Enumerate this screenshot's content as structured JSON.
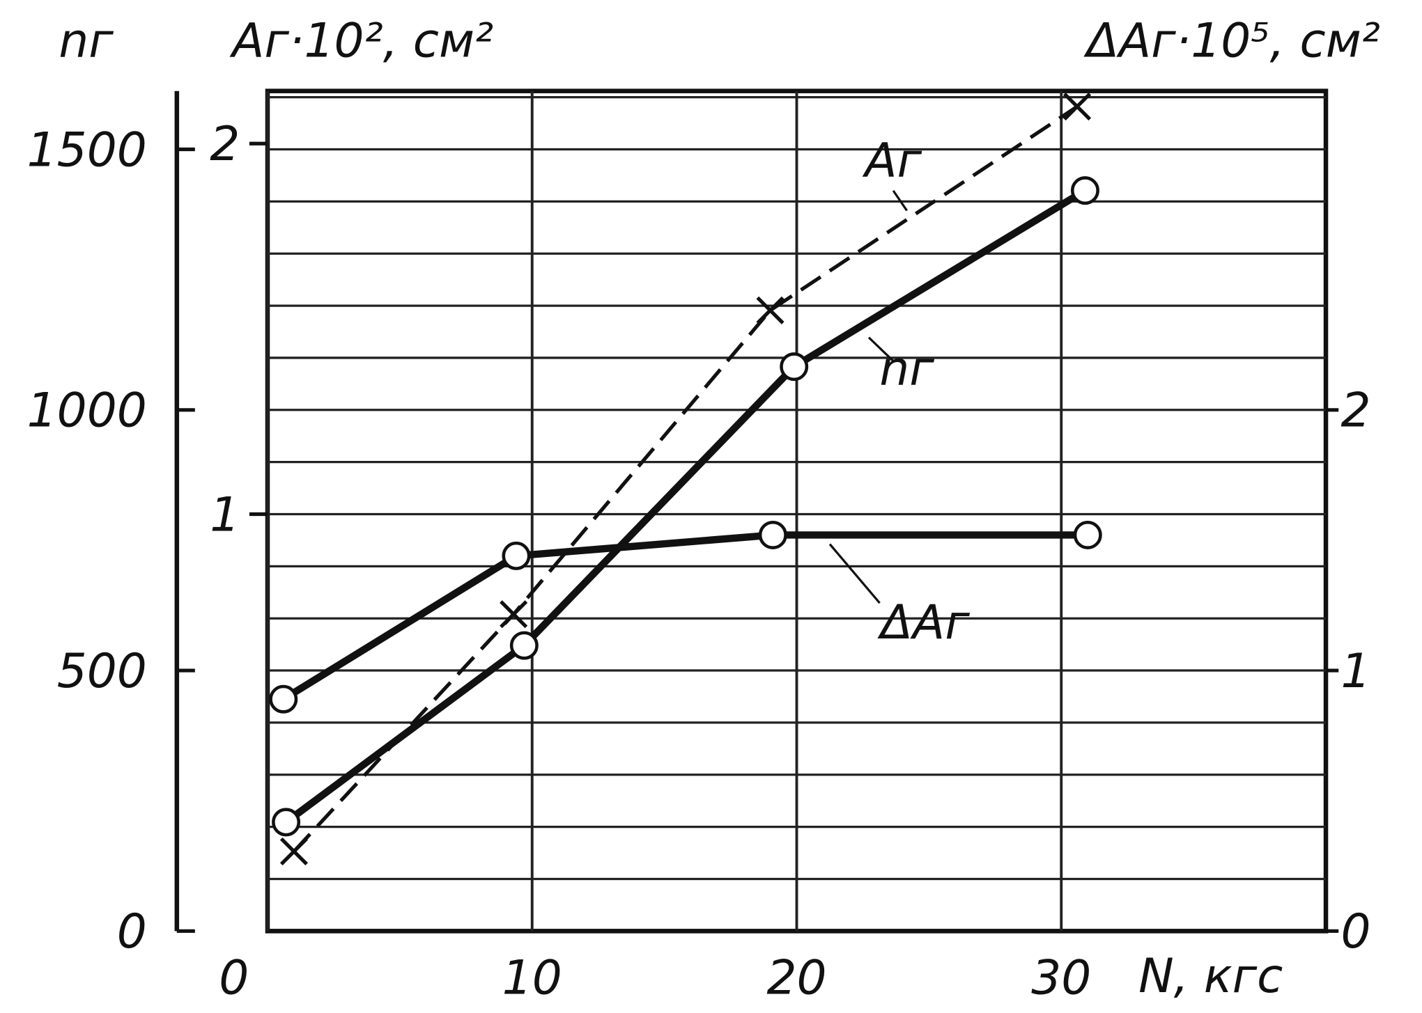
{
  "chart_data": {
    "type": "line",
    "axis_titles": {
      "y": "nг",
      "y2": "Aг·10², см²",
      "y3": "ΔAг·10⁵, см²",
      "x": "N, кгс"
    },
    "xlim": [
      0,
      40
    ],
    "xticks": [
      0,
      10,
      20,
      30
    ],
    "ylim": [
      0,
      1612
    ],
    "yticks": [
      0,
      500,
      1000,
      1500
    ],
    "ygrid": [
      100,
      200,
      300,
      400,
      500,
      600,
      700,
      800,
      900,
      1000,
      1100,
      1200,
      1300,
      1400,
      1500,
      1600
    ],
    "y2lim": [
      -0.125,
      2.142
    ],
    "y2ticks": [
      1,
      2
    ],
    "y3lim": [
      0,
      3.224
    ],
    "y3ticks": [
      0,
      1,
      2
    ],
    "grid": true,
    "series": [
      {
        "name": "Aг",
        "color": "#111111",
        "dashed": true,
        "marker": "x",
        "axis": "y2",
        "x": [
          1,
          9.3,
          19,
          30.6
        ],
        "values": [
          0.09,
          0.73,
          1.55,
          2.1
        ]
      },
      {
        "name": "nг",
        "color": "#111111",
        "dashed": false,
        "marker": "circle",
        "axis": "y",
        "x": [
          0.7,
          9.7,
          19.9,
          30.9
        ],
        "values": [
          209,
          548,
          1083,
          1421
        ]
      },
      {
        "name": "ΔAг",
        "color": "#111111",
        "dashed": false,
        "marker": "circle",
        "axis": "y3",
        "x": [
          0.6,
          9.4,
          19.1,
          31
        ],
        "values": [
          0.89,
          1.44,
          1.52,
          1.52
        ]
      }
    ]
  }
}
